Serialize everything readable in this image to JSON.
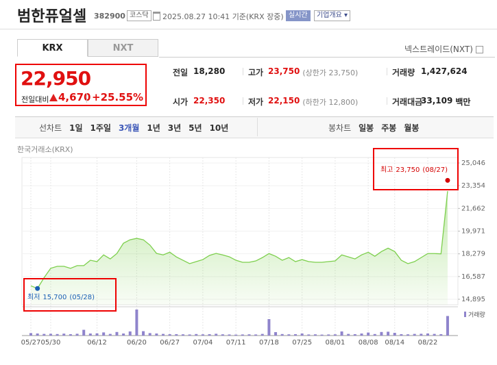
{
  "header": {
    "title": "범한퓨얼셀",
    "code": "382900",
    "market": "코스닥",
    "datetime": "2025.08.27 10:41",
    "basis": "기준(KRX 장중)",
    "realtime": "실시간",
    "company_info": "기업개요"
  },
  "market_tabs": [
    "KRX",
    "NXT"
  ],
  "nxt_toggle": "넥스트레이드(NXT)",
  "price": {
    "current": "22,950",
    "change_label": "전일대비",
    "change": "4,670",
    "change_rate": "+25.55%"
  },
  "stats": [
    {
      "label": "전일",
      "value": "18,280"
    },
    {
      "label": "고가",
      "value": "23,750",
      "note": "(상한가 23,750)"
    },
    {
      "label": "거래량",
      "value": "1,427,624"
    },
    {
      "label": "시가",
      "value": "22,350"
    },
    {
      "label": "저가",
      "value": "22,150",
      "note": "(하한가 12,800)"
    },
    {
      "label": "거래대금",
      "value": "33,109",
      "unit": "백만"
    }
  ],
  "chart_tabs": {
    "line_label": "선차트",
    "line_periods": [
      {
        "label": "1일"
      },
      {
        "label": "1주일"
      },
      {
        "label": "3개월",
        "selected": true
      },
      {
        "label": "1년"
      },
      {
        "label": "3년"
      },
      {
        "label": "5년"
      },
      {
        "label": "10년"
      }
    ],
    "candle_label": "봉차트",
    "candle_periods": [
      {
        "label": "일봉"
      },
      {
        "label": "주봉"
      },
      {
        "label": "월봉"
      }
    ]
  },
  "chart_data": {
    "type": "line",
    "source": "한국거래소(KRX)",
    "color": "#7ccf4c",
    "categories": [
      "05/27",
      null,
      null,
      "05/30",
      null,
      null,
      null,
      null,
      null,
      null,
      "06/12",
      null,
      null,
      null,
      null,
      null,
      "06/20",
      null,
      null,
      null,
      null,
      "06/27",
      null,
      null,
      null,
      null,
      "07/04",
      null,
      null,
      null,
      null,
      "07/11",
      null,
      null,
      null,
      null,
      "07/18",
      null,
      null,
      null,
      null,
      "07/25",
      null,
      null,
      null,
      null,
      "08/01",
      null,
      null,
      null,
      null,
      "08/08",
      null,
      null,
      null,
      "08/14",
      null,
      null,
      null,
      null,
      "08/22",
      null,
      null,
      null
    ],
    "values": [
      15900,
      15700,
      16500,
      17200,
      17350,
      17350,
      17200,
      17400,
      17400,
      17800,
      17700,
      18200,
      17900,
      18300,
      19070,
      19330,
      19430,
      19330,
      18930,
      18310,
      18200,
      18400,
      18050,
      17800,
      17550,
      17700,
      17850,
      18160,
      18310,
      18200,
      18060,
      17800,
      17650,
      17650,
      17750,
      18000,
      18300,
      18100,
      17800,
      18000,
      17700,
      17850,
      17700,
      17650,
      17650,
      17700,
      17750,
      18200,
      18050,
      17900,
      18200,
      18400,
      18100,
      18450,
      18700,
      18450,
      17800,
      17550,
      17700,
      18000,
      18300,
      18300,
      18280,
      22950
    ],
    "ylim": [
      14895,
      25046
    ],
    "yticks": [
      {
        "value": 25046,
        "label": "25,046"
      },
      {
        "value": 23354,
        "label": "23,354"
      },
      {
        "value": 21662,
        "label": "21,662"
      },
      {
        "value": 19971,
        "label": "19,971"
      },
      {
        "value": 18279,
        "label": "18,279"
      },
      {
        "value": 16587,
        "label": "16,587"
      },
      {
        "value": 14895,
        "label": "14,895"
      }
    ],
    "grid": true,
    "volume": {
      "name": "거래량",
      "color": "#8f84cc",
      "values": [
        180000,
        150000,
        120000,
        130000,
        110000,
        140000,
        100000,
        130000,
        420000,
        150000,
        160000,
        230000,
        120000,
        260000,
        150000,
        300000,
        1900000,
        320000,
        180000,
        150000,
        120000,
        100000,
        100000,
        90000,
        80000,
        110000,
        90000,
        100000,
        130000,
        90000,
        80000,
        70000,
        80000,
        90000,
        80000,
        120000,
        1200000,
        250000,
        110000,
        90000,
        100000,
        150000,
        80000,
        90000,
        70000,
        80000,
        90000,
        300000,
        120000,
        100000,
        150000,
        220000,
        110000,
        260000,
        280000,
        200000,
        100000,
        90000,
        120000,
        130000,
        150000,
        120000,
        100000,
        1427624
      ]
    },
    "annotations": {
      "high": {
        "label": "최고",
        "value": 23750,
        "value_label": "23,750",
        "date": "(08/27)",
        "color": "#d40000"
      },
      "low": {
        "label": "최저",
        "value": 15700,
        "value_label": "15,700",
        "date": "(05/28)",
        "color": "#1a5fb4"
      }
    }
  }
}
